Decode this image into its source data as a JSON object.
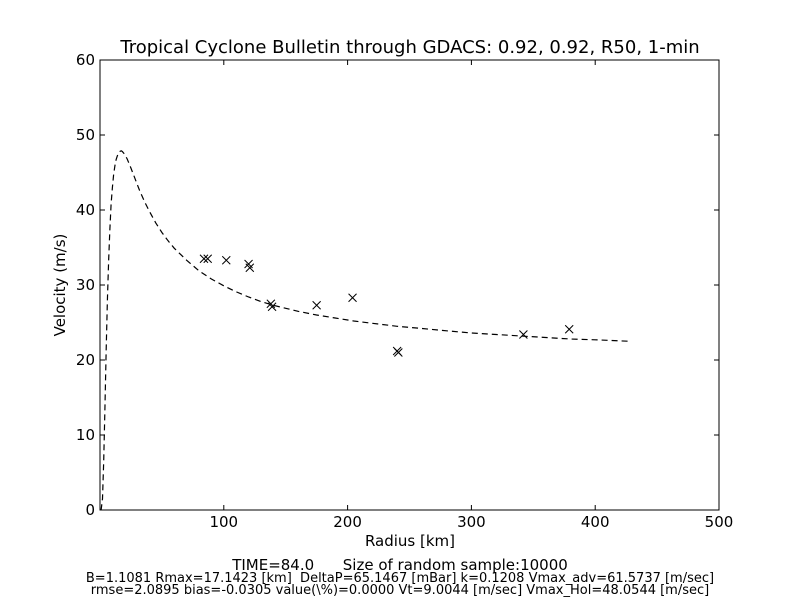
{
  "chart_data": {
    "type": "line",
    "title": "Tropical Cyclone Bulletin through GDACS: 0.92, 0.92, R50, 1-min",
    "xlabel": "Radius [km]",
    "ylabel": "Velocity (m/s)",
    "xlim": [
      0,
      500
    ],
    "ylim": [
      0,
      60
    ],
    "xticks": [
      100,
      200,
      300,
      400,
      500
    ],
    "yticks": [
      0,
      10,
      20,
      30,
      40,
      50,
      60
    ],
    "grid": false,
    "legend": "none",
    "colors": {
      "line": "#000000",
      "marker": "#000000",
      "frame": "#000000"
    },
    "series": [
      {
        "style": "dashed-line",
        "x": [
          0.5,
          1,
          2,
          3,
          4,
          5,
          6,
          7,
          8,
          9,
          10,
          11,
          12,
          13,
          14,
          15,
          16,
          17.1,
          18,
          20,
          22,
          25,
          28,
          32,
          36,
          40,
          45,
          50,
          55,
          60,
          70,
          80,
          90,
          100,
          110,
          120,
          130,
          140,
          150,
          160,
          175,
          190,
          205,
          220,
          240,
          260,
          280,
          300,
          320,
          340,
          360,
          380,
          400,
          428
        ],
        "y": [
          0,
          0.1,
          1.5,
          6.5,
          14,
          21.5,
          28,
          33.5,
          37.5,
          40.8,
          43,
          44.7,
          45.9,
          46.7,
          47.2,
          47.6,
          47.8,
          47.9,
          47.8,
          47.4,
          46.8,
          45.6,
          44.3,
          42.6,
          41.1,
          39.8,
          38.3,
          37.0,
          35.9,
          34.9,
          33.3,
          31.9,
          30.8,
          29.9,
          29.1,
          28.4,
          27.8,
          27.3,
          26.9,
          26.5,
          26.0,
          25.6,
          25.2,
          24.9,
          24.5,
          24.2,
          23.9,
          23.6,
          23.4,
          23.2,
          23.0,
          22.8,
          22.7,
          22.5
        ]
      },
      {
        "style": "x-markers",
        "x": [
          84,
          87,
          102,
          120,
          121,
          138,
          139,
          175,
          204,
          240,
          241,
          342,
          379
        ],
        "y": [
          33.5,
          33.5,
          33.3,
          32.8,
          32.3,
          27.5,
          27.1,
          27.3,
          28.3,
          21.2,
          21.0,
          23.4,
          24.1
        ]
      }
    ]
  },
  "footer": {
    "line1": "TIME=84.0      Size of random sample:10000",
    "line2": "B=1.1081 Rmax=17.1423 [km]  DeltaP=65.1467 [mBar] k=0.1208 Vmax_adv=61.5737 [m/sec]",
    "line3": "rmse=2.0895 bias=-0.0305 value(\\%)=0.0000 Vt=9.0044 [m/sec] Vmax_Hol=48.0544 [m/sec]"
  }
}
